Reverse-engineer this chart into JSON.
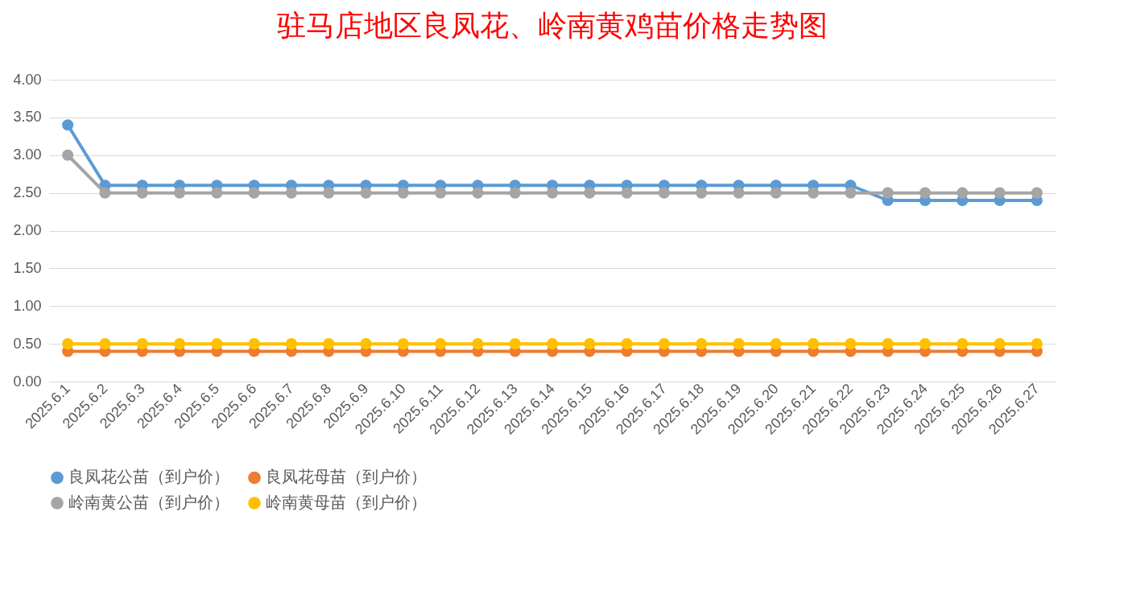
{
  "chart_data": {
    "type": "line",
    "title": "驻马店地区良凤花、岭南黄鸡苗价格走势图",
    "categories": [
      "2025.6.1",
      "2025.6.2",
      "2025.6.3",
      "2025.6.4",
      "2025.6.5",
      "2025.6.6",
      "2025.6.7",
      "2025.6.8",
      "2025.6.9",
      "2025.6.10",
      "2025.6.11",
      "2025.6.12",
      "2025.6.13",
      "2025.6.14",
      "2025.6.15",
      "2025.6.16",
      "2025.6.17",
      "2025.6.18",
      "2025.6.19",
      "2025.6.20",
      "2025.6.21",
      "2025.6.22",
      "2025.6.23",
      "2025.6.24",
      "2025.6.25",
      "2025.6.26",
      "2025.6.27"
    ],
    "series": [
      {
        "name": "良凤花公苗（到户价）",
        "color": "#5b9bd5",
        "values": [
          3.4,
          2.6,
          2.6,
          2.6,
          2.6,
          2.6,
          2.6,
          2.6,
          2.6,
          2.6,
          2.6,
          2.6,
          2.6,
          2.6,
          2.6,
          2.6,
          2.6,
          2.6,
          2.6,
          2.6,
          2.6,
          2.6,
          2.4,
          2.4,
          2.4,
          2.4,
          2.4
        ]
      },
      {
        "name": "良凤花母苗（到户价）",
        "color": "#ed7d31",
        "values": [
          0.4,
          0.4,
          0.4,
          0.4,
          0.4,
          0.4,
          0.4,
          0.4,
          0.4,
          0.4,
          0.4,
          0.4,
          0.4,
          0.4,
          0.4,
          0.4,
          0.4,
          0.4,
          0.4,
          0.4,
          0.4,
          0.4,
          0.4,
          0.4,
          0.4,
          0.4,
          0.4
        ]
      },
      {
        "name": "岭南黄公苗（到户价）",
        "color": "#a5a5a5",
        "values": [
          3.0,
          2.5,
          2.5,
          2.5,
          2.5,
          2.5,
          2.5,
          2.5,
          2.5,
          2.5,
          2.5,
          2.5,
          2.5,
          2.5,
          2.5,
          2.5,
          2.5,
          2.5,
          2.5,
          2.5,
          2.5,
          2.5,
          2.5,
          2.5,
          2.5,
          2.5,
          2.5
        ]
      },
      {
        "name": "岭南黄母苗（到户价）",
        "color": "#ffc000",
        "values": [
          0.5,
          0.5,
          0.5,
          0.5,
          0.5,
          0.5,
          0.5,
          0.5,
          0.5,
          0.5,
          0.5,
          0.5,
          0.5,
          0.5,
          0.5,
          0.5,
          0.5,
          0.5,
          0.5,
          0.5,
          0.5,
          0.5,
          0.5,
          0.5,
          0.5,
          0.5,
          0.5
        ]
      }
    ],
    "ylim": [
      0,
      4
    ],
    "yticks": [
      {
        "value": 0,
        "label": "0.00"
      },
      {
        "value": 0.5,
        "label": "0.50"
      },
      {
        "value": 1,
        "label": "1.00"
      },
      {
        "value": 1.5,
        "label": "1.50"
      },
      {
        "value": 2,
        "label": "2.00"
      },
      {
        "value": 2.5,
        "label": "2.50"
      },
      {
        "value": 3,
        "label": "3.00"
      },
      {
        "value": 3.5,
        "label": "3.50"
      },
      {
        "value": 4,
        "label": "4.00"
      }
    ],
    "grid": "y",
    "legend": "bottom",
    "marker": "circle",
    "line_style": "solid"
  }
}
